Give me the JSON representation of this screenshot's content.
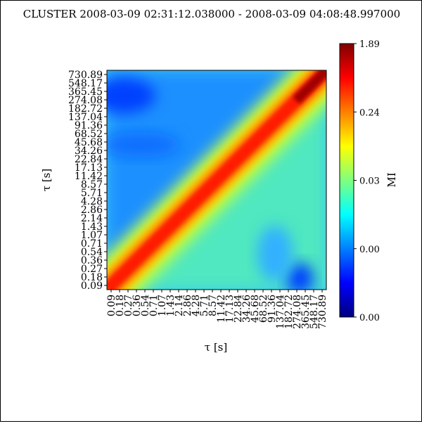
{
  "chart_data": {
    "type": "heatmap",
    "title": "CLUSTER  2008-03-09 02:31:12.038000 - 2008-03-09 04:08:48.997000",
    "xlabel": "τ [s]",
    "ylabel": "τ [s]",
    "tick_labels": [
      "0.09",
      "0.18",
      "0.27",
      "0.36",
      "0.54",
      "0.71",
      "1.07",
      "1.43",
      "2.14",
      "2.86",
      "4.28",
      "5.71",
      "8.57",
      "11.42",
      "17.13",
      "22.84",
      "34.26",
      "45.68",
      "68.52",
      "91.36",
      "137.04",
      "182.72",
      "274.08",
      "365.45",
      "548.17",
      "730.89"
    ],
    "colorbar": {
      "label": "MI",
      "tick_labels": [
        "1.89",
        "0.24",
        "0.03",
        "0.00",
        "0.00"
      ],
      "colormap": "jet",
      "scale": "log"
    },
    "diagonal_band": true
  }
}
